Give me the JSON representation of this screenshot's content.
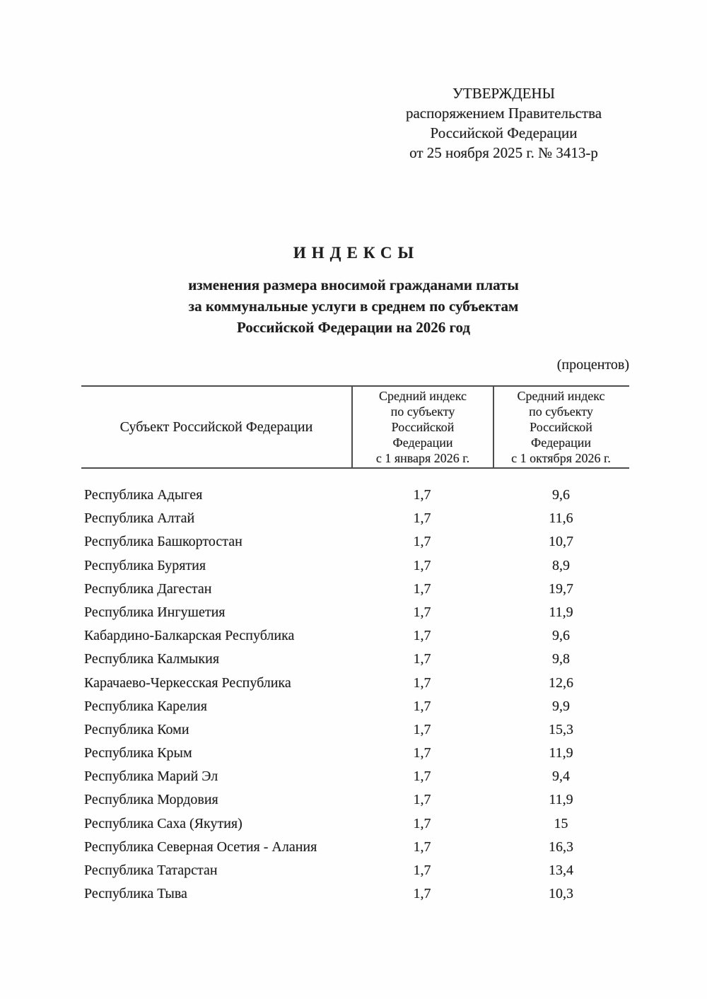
{
  "document": {
    "approval": {
      "line1": "УТВЕРЖДЕНЫ",
      "line2": "распоряжением Правительства",
      "line3": "Российской Федерации",
      "line4": "от 25 ноября 2025 г. № 3413-р"
    },
    "title": "ИНДЕКСЫ",
    "subtitle_lines": [
      "изменения размера вносимой гражданами платы",
      "за коммунальные услуги в среднем по субъектам",
      "Российской Федерации на 2026 год"
    ],
    "units_note": "(процентов)",
    "table": {
      "header": {
        "col1": "Субъект Российской Федерации",
        "col2_lines": [
          "Средний индекс",
          "по субъекту",
          "Российской",
          "Федерации",
          "с 1 января 2026 г."
        ],
        "col3_lines": [
          "Средний индекс",
          "по субъекту",
          "Российской",
          "Федерации",
          "с 1 октября 2026 г."
        ]
      },
      "rows": [
        {
          "region": "Республика Адыгея",
          "jan": "1,7",
          "oct": "9,6"
        },
        {
          "region": "Республика Алтай",
          "jan": "1,7",
          "oct": "11,6"
        },
        {
          "region": "Республика Башкортостан",
          "jan": "1,7",
          "oct": "10,7"
        },
        {
          "region": "Республика Бурятия",
          "jan": "1,7",
          "oct": "8,9"
        },
        {
          "region": "Республика Дагестан",
          "jan": "1,7",
          "oct": "19,7"
        },
        {
          "region": "Республика Ингушетия",
          "jan": "1,7",
          "oct": "11,9"
        },
        {
          "region": "Кабардино-Балкарская Республика",
          "jan": "1,7",
          "oct": "9,6"
        },
        {
          "region": "Республика Калмыкия",
          "jan": "1,7",
          "oct": "9,8"
        },
        {
          "region": "Карачаево-Черкесская Республика",
          "jan": "1,7",
          "oct": "12,6"
        },
        {
          "region": "Республика Карелия",
          "jan": "1,7",
          "oct": "9,9"
        },
        {
          "region": "Республика Коми",
          "jan": "1,7",
          "oct": "15,3"
        },
        {
          "region": "Республика Крым",
          "jan": "1,7",
          "oct": "11,9"
        },
        {
          "region": "Республика Марий Эл",
          "jan": "1,7",
          "oct": "9,4"
        },
        {
          "region": "Республика Мордовия",
          "jan": "1,7",
          "oct": "11,9"
        },
        {
          "region": "Республика Саха (Якутия)",
          "jan": "1,7",
          "oct": "15"
        },
        {
          "region": "Республика Северная Осетия - Алания",
          "jan": "1,7",
          "oct": "16,3"
        },
        {
          "region": "Республика Татарстан",
          "jan": "1,7",
          "oct": "13,4"
        },
        {
          "region": "Республика Тыва",
          "jan": "1,7",
          "oct": "10,3"
        }
      ]
    }
  }
}
